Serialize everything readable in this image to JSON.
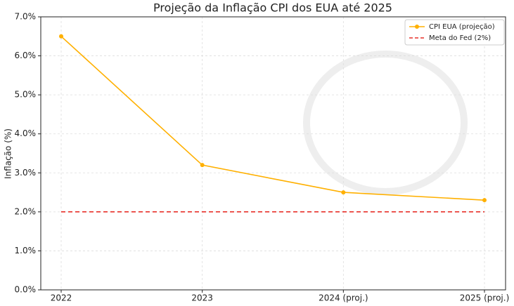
{
  "chart_data": {
    "type": "line",
    "title": "Projeção da Inflação CPI dos EUA até 2025",
    "y_label": "Inflação (%)",
    "categories": [
      "2022",
      "2023",
      "2024 (proj.)",
      "2025 (proj.)"
    ],
    "series": [
      {
        "name": "CPI EUA (projeção)",
        "color": "#ffb000",
        "line_style": "solid",
        "marker": "circle",
        "values": [
          6.5,
          3.2,
          2.5,
          2.3
        ]
      },
      {
        "name": "Meta do Fed (2%)",
        "color": "#e8302a",
        "line_style": "dashed",
        "marker": "none",
        "values": [
          2,
          2,
          2,
          2
        ]
      }
    ],
    "ylim": [
      0,
      7
    ],
    "yticks": [
      {
        "value": 0,
        "label": "0.0%"
      },
      {
        "value": 1,
        "label": "1.0%"
      },
      {
        "value": 2,
        "label": "2.0%"
      },
      {
        "value": 3,
        "label": "3.0%"
      },
      {
        "value": 4,
        "label": "4.0%"
      },
      {
        "value": 5,
        "label": "5.0%"
      },
      {
        "value": 6,
        "label": "6.0%"
      },
      {
        "value": 7,
        "label": "7.0%"
      }
    ],
    "grid": true,
    "legend": "upper right"
  }
}
